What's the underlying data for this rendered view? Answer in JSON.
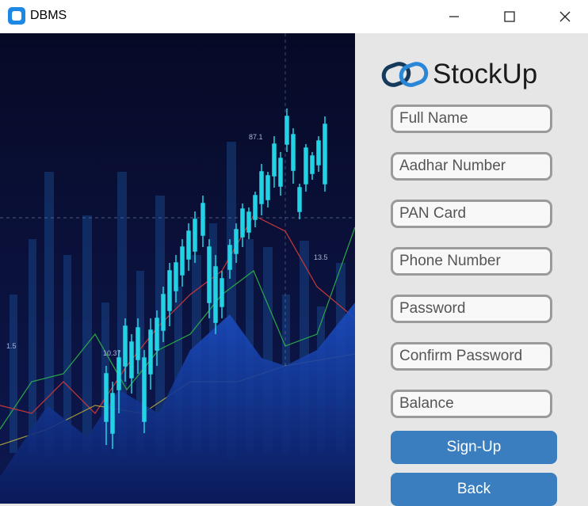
{
  "window": {
    "title": "DBMS",
    "icons": {
      "app": "app-icon",
      "minimize": "minimize-icon",
      "maximize": "maximize-icon",
      "close": "close-icon"
    }
  },
  "hero": {
    "image": "stock-candlestick-chart-illustration",
    "labels": [
      "87.1",
      "13.5",
      "10.37",
      "1.5"
    ]
  },
  "brand": {
    "name": "StockUp",
    "logo": "chain-link-logo-icon",
    "accent": "#3a7ebf"
  },
  "form": {
    "full_name": "Full Name",
    "aadhar": "Aadhar Number",
    "pan": "PAN Card",
    "phone": "Phone Number",
    "password": "Password",
    "confirm_password": "Confirm Password",
    "balance": "Balance"
  },
  "buttons": {
    "signup": "Sign-Up",
    "back": "Back"
  }
}
